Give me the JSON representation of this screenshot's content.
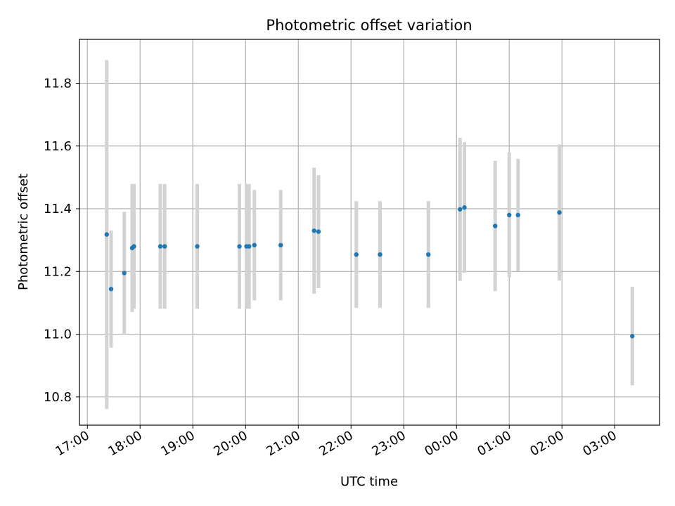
{
  "chart_data": {
    "type": "scatter",
    "title": "Photometric offset variation",
    "xlabel": "UTC time",
    "ylabel": "Photometric offset",
    "x_ticks": [
      "17:00",
      "18:00",
      "19:00",
      "20:00",
      "21:00",
      "22:00",
      "23:00",
      "00:00",
      "01:00",
      "02:00",
      "03:00"
    ],
    "y_ticks": [
      "10.8",
      "11.0",
      "11.2",
      "11.4",
      "11.6",
      "11.8"
    ],
    "x_range_hours": [
      16.85,
      27.85
    ],
    "ylim": [
      10.71,
      11.94
    ],
    "grid": true,
    "point_color": "#1f77b4",
    "errorbar_color": "#d3d3d3",
    "points": [
      {
        "t": "17:22",
        "y": 11.318,
        "lo": 10.762,
        "hi": 11.874
      },
      {
        "t": "17:27",
        "y": 11.144,
        "lo": 10.957,
        "hi": 11.331
      },
      {
        "t": "17:42",
        "y": 11.195,
        "lo": 11.0,
        "hi": 11.39
      },
      {
        "t": "17:51",
        "y": 11.275,
        "lo": 11.071,
        "hi": 11.479
      },
      {
        "t": "17:53",
        "y": 11.28,
        "lo": 11.081,
        "hi": 11.479
      },
      {
        "t": "18:23",
        "y": 11.28,
        "lo": 11.081,
        "hi": 11.479
      },
      {
        "t": "18:28",
        "y": 11.28,
        "lo": 11.081,
        "hi": 11.479
      },
      {
        "t": "19:05",
        "y": 11.28,
        "lo": 11.081,
        "hi": 11.479
      },
      {
        "t": "19:53",
        "y": 11.28,
        "lo": 11.081,
        "hi": 11.479
      },
      {
        "t": "20:01",
        "y": 11.28,
        "lo": 11.081,
        "hi": 11.479
      },
      {
        "t": "20:04",
        "y": 11.28,
        "lo": 11.081,
        "hi": 11.479
      },
      {
        "t": "20:10",
        "y": 11.284,
        "lo": 11.108,
        "hi": 11.46
      },
      {
        "t": "20:40",
        "y": 11.284,
        "lo": 11.108,
        "hi": 11.46
      },
      {
        "t": "21:18",
        "y": 11.33,
        "lo": 11.129,
        "hi": 11.531
      },
      {
        "t": "21:23",
        "y": 11.327,
        "lo": 11.147,
        "hi": 11.507
      },
      {
        "t": "22:06",
        "y": 11.254,
        "lo": 11.084,
        "hi": 11.424
      },
      {
        "t": "22:33",
        "y": 11.254,
        "lo": 11.084,
        "hi": 11.424
      },
      {
        "t": "23:28",
        "y": 11.254,
        "lo": 11.084,
        "hi": 11.424
      },
      {
        "t": "00:04",
        "y": 11.398,
        "lo": 11.17,
        "hi": 11.626
      },
      {
        "t": "00:09",
        "y": 11.404,
        "lo": 11.196,
        "hi": 11.612
      },
      {
        "t": "00:44",
        "y": 11.345,
        "lo": 11.137,
        "hi": 11.553
      },
      {
        "t": "01:00",
        "y": 11.38,
        "lo": 11.181,
        "hi": 11.579
      },
      {
        "t": "01:10",
        "y": 11.38,
        "lo": 11.201,
        "hi": 11.559
      },
      {
        "t": "01:57",
        "y": 11.388,
        "lo": 11.171,
        "hi": 11.605
      },
      {
        "t": "03:20",
        "y": 10.994,
        "lo": 10.837,
        "hi": 11.151
      }
    ]
  }
}
